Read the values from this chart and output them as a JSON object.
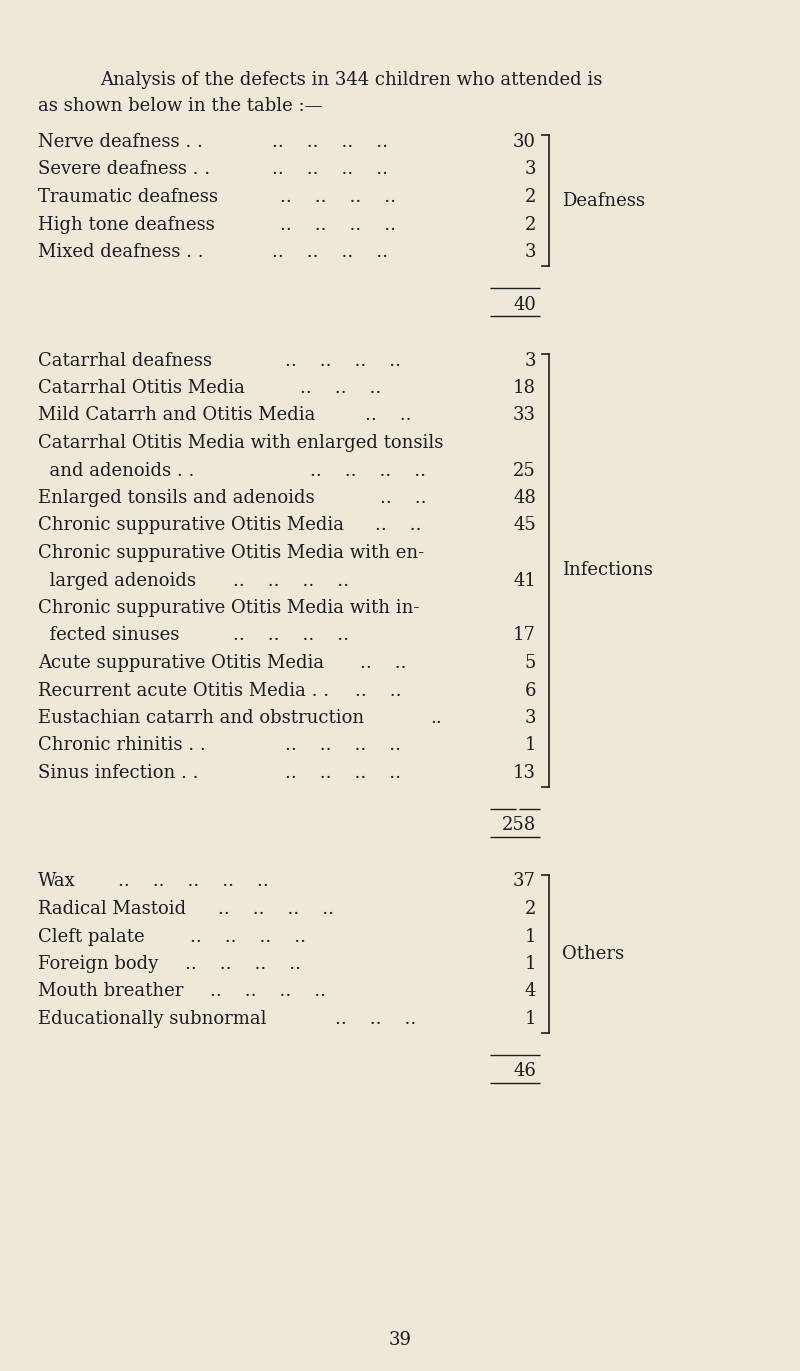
{
  "bg_color": "#ede8d8",
  "title_line1": "Analysis of the defects in 344 children who attended is",
  "title_line2": "as shown below in the table :—",
  "sections": [
    {
      "group_label": "Deafness",
      "entries": [
        {
          "label": "Nerve deafness . .",
          "dots": "..    ..    ..    ..",
          "value": "30"
        },
        {
          "label": "Severe deafness . .",
          "dots": "..    ..    ..    ..",
          "value": "3"
        },
        {
          "label": "Traumatic deafness",
          "dots": "..    ..    ..    ..",
          "value": "2"
        },
        {
          "label": "High tone deafness",
          "dots": "..    ..    ..    ..",
          "value": "2"
        },
        {
          "label": "Mixed deafness . .",
          "dots": "..    ..    ..    ..",
          "value": "3"
        }
      ],
      "total": "40"
    },
    {
      "group_label": "Infections",
      "entries": [
        {
          "label": "Catarrhal deafness",
          "dots": "..    ..    ..    ..",
          "value": "3",
          "indent": false
        },
        {
          "label": "Catarrhal Otitis Media",
          "dots": "..    ..    ..",
          "value": "18",
          "indent": false
        },
        {
          "label": "Mild Catarrh and Otitis Media",
          "dots": "..    ..",
          "value": "33",
          "indent": false
        },
        {
          "label": "Catarrhal Otitis Media with enlarged tonsils",
          "dots": "",
          "value": null,
          "indent": false
        },
        {
          "label": "  and adenoids . .",
          "dots": "..    ..    ..    ..",
          "value": "25",
          "indent": true
        },
        {
          "label": "Enlarged tonsils and adenoids",
          "dots": "..    ..",
          "value": "48",
          "indent": false
        },
        {
          "label": "Chronic suppurative Otitis Media",
          "dots": "..    ..",
          "value": "45",
          "indent": false
        },
        {
          "label": "Chronic suppurative Otitis Media with en-",
          "dots": "",
          "value": null,
          "indent": false
        },
        {
          "label": "  larged adenoids",
          "dots": "..    ..    ..    ..",
          "value": "41",
          "indent": true
        },
        {
          "label": "Chronic suppurative Otitis Media with in-",
          "dots": "",
          "value": null,
          "indent": false
        },
        {
          "label": "  fected sinuses",
          "dots": "..    ..    ..    ..",
          "value": "17",
          "indent": true
        },
        {
          "label": "Acute suppurative Otitis Media",
          "dots": "..    ..",
          "value": "5",
          "indent": false
        },
        {
          "label": "Recurrent acute Otitis Media . .",
          "dots": "..    ..",
          "value": "6",
          "indent": false
        },
        {
          "label": "Eustachian catarrh and obstruction",
          "dots": "..",
          "value": "3",
          "indent": false
        },
        {
          "label": "Chronic rhinitis . .",
          "dots": "..    ..    ..    ..",
          "value": "1",
          "indent": false
        },
        {
          "label": "Sinus infection . .",
          "dots": "..    ..    ..    ..",
          "value": "13",
          "indent": false
        }
      ],
      "total": "258"
    },
    {
      "group_label": "Others",
      "entries": [
        {
          "label": "Wax",
          "dots": "..    ..    ..    ..    ..",
          "value": "37",
          "indent": false
        },
        {
          "label": "Radical Mastoid",
          "dots": "..    ..    ..    ..",
          "value": "2",
          "indent": false
        },
        {
          "label": "Cleft palate",
          "dots": "..    ..    ..    ..",
          "value": "1",
          "indent": false
        },
        {
          "label": "Foreign body",
          "dots": "..    ..    ..    ..",
          "value": "1",
          "indent": false
        },
        {
          "label": "Mouth breather",
          "dots": "..    ..    ..    ..",
          "value": "4",
          "indent": false
        },
        {
          "label": "Educationally subnormal",
          "dots": "..    ..    ..",
          "value": "1",
          "indent": false
        }
      ],
      "total": "46"
    }
  ],
  "page_number": "39",
  "text_color": "#1c1c1c",
  "font_size": 13.0,
  "title_font_size": 13.0
}
